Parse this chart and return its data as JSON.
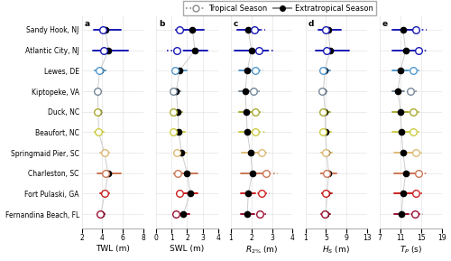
{
  "stations": [
    "Sandy Hook, NJ",
    "Atlantic City, NJ",
    "Lewes, DE",
    "Kiptopeke, VA",
    "Duck, NC",
    "Beaufort, NC",
    "Springmaid Pier, SC",
    "Charleston, SC",
    "Fort Pulaski, GA",
    "Fernandina Beach, FL"
  ],
  "colors": [
    "#1a1ab5",
    "#1a1ab5",
    "#5599cc",
    "#778899",
    "#aaaa33",
    "#cccc44",
    "#ddbb77",
    "#cc7755",
    "#cc2222",
    "#991133"
  ],
  "panels": {
    "TWL": {
      "label": "TWL (m)",
      "xlim": [
        2,
        8
      ],
      "xticks": [
        2,
        4,
        6,
        8
      ],
      "extra_center": [
        4.3,
        4.6,
        3.75,
        3.55,
        3.6,
        3.65,
        4.2,
        4.55,
        4.25,
        3.85
      ],
      "extra_lo": [
        3.2,
        3.1,
        3.3,
        3.3,
        3.3,
        3.3,
        3.8,
        3.5,
        3.8,
        3.5
      ],
      "extra_hi": [
        5.8,
        6.5,
        4.3,
        3.8,
        3.9,
        4.1,
        4.65,
        5.8,
        4.7,
        4.2
      ],
      "trop_center": [
        4.05,
        4.1,
        3.7,
        3.5,
        3.55,
        3.6,
        4.2,
        4.3,
        4.2,
        3.8
      ],
      "trop_lo": [
        3.7,
        3.2,
        3.5,
        3.3,
        3.4,
        3.3,
        3.9,
        3.7,
        3.8,
        3.55
      ],
      "trop_hi": [
        4.5,
        4.8,
        3.95,
        3.65,
        3.8,
        3.95,
        4.55,
        5.1,
        4.55,
        4.05
      ]
    },
    "SWL": {
      "label": "SWL (m)",
      "xlim": [
        0,
        4
      ],
      "xticks": [
        0,
        1,
        2,
        3,
        4
      ],
      "extra_center": [
        2.35,
        2.5,
        1.5,
        1.3,
        1.4,
        1.45,
        1.65,
        2.0,
        2.2,
        1.75
      ],
      "extra_lo": [
        1.7,
        1.8,
        1.1,
        1.05,
        1.1,
        1.1,
        1.3,
        1.4,
        1.75,
        1.4
      ],
      "extra_hi": [
        3.1,
        3.3,
        2.0,
        1.55,
        1.7,
        1.85,
        2.0,
        2.65,
        2.65,
        2.15
      ],
      "trop_center": [
        1.5,
        1.35,
        1.2,
        1.1,
        1.1,
        1.1,
        1.35,
        1.4,
        1.5,
        1.3
      ],
      "trop_lo": [
        1.2,
        0.7,
        1.0,
        0.95,
        0.95,
        0.95,
        1.15,
        1.1,
        1.3,
        1.1
      ],
      "trop_hi": [
        1.85,
        1.9,
        1.4,
        1.25,
        1.25,
        1.3,
        1.6,
        1.75,
        1.75,
        1.55
      ]
    },
    "R2": {
      "label": "$R_{2\\%}$ (m)",
      "xlim": [
        1,
        4
      ],
      "xticks": [
        1,
        2,
        3,
        4
      ],
      "extra_center": [
        1.85,
        2.0,
        1.8,
        1.7,
        1.75,
        1.8,
        1.95,
        2.05,
        1.85,
        1.8
      ],
      "extra_lo": [
        1.3,
        1.2,
        1.4,
        1.4,
        1.4,
        1.4,
        1.55,
        1.5,
        1.5,
        1.5
      ],
      "extra_hi": [
        2.4,
        2.8,
        2.25,
        2.0,
        2.1,
        2.25,
        2.4,
        2.65,
        2.2,
        2.15
      ],
      "trop_center": [
        2.15,
        2.35,
        2.2,
        2.1,
        2.2,
        2.2,
        2.5,
        2.7,
        2.5,
        2.4
      ],
      "trop_lo": [
        1.65,
        1.6,
        1.8,
        1.75,
        1.8,
        1.8,
        2.1,
        2.1,
        2.1,
        2.05
      ],
      "trop_hi": [
        2.65,
        3.1,
        2.6,
        2.45,
        2.6,
        2.65,
        2.9,
        3.3,
        2.9,
        2.75
      ]
    },
    "Hs": {
      "label": "$H_S$ (m)",
      "xlim": [
        1,
        13
      ],
      "xticks": [
        1,
        5,
        9,
        13
      ],
      "extra_center": [
        5.5,
        5.8,
        4.8,
        4.5,
        4.85,
        4.9,
        5.1,
        5.55,
        5.2,
        5.0
      ],
      "extra_lo": [
        3.5,
        3.0,
        3.8,
        3.8,
        3.8,
        3.8,
        4.1,
        4.0,
        4.2,
        4.1
      ],
      "extra_hi": [
        8.0,
        9.5,
        5.8,
        5.2,
        5.9,
        6.0,
        6.15,
        7.1,
        6.2,
        5.9
      ],
      "trop_center": [
        5.0,
        5.2,
        4.5,
        4.3,
        4.5,
        4.5,
        5.0,
        5.2,
        5.0,
        4.8
      ],
      "trop_lo": [
        3.8,
        3.5,
        3.8,
        3.6,
        3.8,
        3.8,
        4.2,
        3.9,
        4.1,
        4.1
      ],
      "trop_hi": [
        6.2,
        6.8,
        5.5,
        5.0,
        5.5,
        5.5,
        5.8,
        6.7,
        5.9,
        5.55
      ]
    },
    "Tp": {
      "label": "$T_P$ (s)",
      "xlim": [
        7,
        19
      ],
      "xticks": [
        7,
        11,
        15,
        19
      ],
      "extra_center": [
        11.5,
        12.0,
        11.0,
        10.5,
        11.0,
        11.2,
        11.5,
        12.0,
        11.5,
        11.2
      ],
      "extra_lo": [
        9.5,
        9.5,
        9.5,
        9.5,
        9.5,
        9.5,
        9.8,
        9.8,
        9.8,
        9.8
      ],
      "extra_hi": [
        13.5,
        14.5,
        12.5,
        11.5,
        12.5,
        12.8,
        13.2,
        14.2,
        13.2,
        12.5
      ],
      "trop_center": [
        14.0,
        14.5,
        13.5,
        13.0,
        13.5,
        13.5,
        14.0,
        14.5,
        14.0,
        13.8
      ],
      "trop_lo": [
        12.0,
        12.5,
        12.0,
        11.5,
        12.0,
        12.0,
        12.5,
        12.5,
        12.5,
        12.3
      ],
      "trop_hi": [
        16.0,
        16.5,
        15.0,
        14.5,
        15.0,
        15.0,
        15.5,
        16.5,
        15.5,
        15.3
      ]
    }
  },
  "panel_labels": [
    "a",
    "b",
    "c",
    "d",
    "e"
  ],
  "bg_color": "#ffffff"
}
